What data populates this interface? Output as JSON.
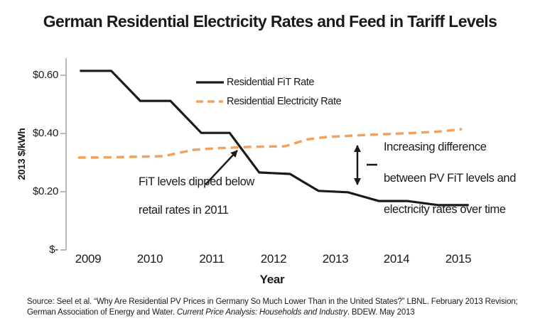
{
  "title": "German Residential Electricity Rates and Feed in Tariff Levels",
  "chart_data": {
    "type": "line",
    "title": "German Residential Electricity Rates and Feed in Tariff Levels",
    "xlabel": "Year",
    "ylabel": "2013 $/kWh",
    "grid": false,
    "legend_position": "inside-upper-center",
    "x_axis": {
      "label": "Year",
      "ticks": [
        2009,
        2010,
        2011,
        2012,
        2013,
        2014,
        2015
      ],
      "range": [
        2008.75,
        2015.35
      ]
    },
    "y_axis": {
      "label": "2013 $/kWh",
      "ticks": [
        {
          "value": 0.6,
          "label": "$0.60"
        },
        {
          "value": 0.4,
          "label": "$0.40"
        },
        {
          "value": 0.2,
          "label": "$0.20"
        },
        {
          "value": 0.0,
          "label": "$-"
        }
      ],
      "range": [
        0,
        0.655
      ]
    },
    "series": [
      {
        "name": "Residential FiT Rate",
        "line_style": "solid",
        "color": "#1a1a1a",
        "points": [
          [
            2008.86,
            0.615
          ],
          [
            2009.37,
            0.615
          ],
          [
            2009.84,
            0.512
          ],
          [
            2010.33,
            0.512
          ],
          [
            2010.83,
            0.402
          ],
          [
            2011.29,
            0.402
          ],
          [
            2011.77,
            0.266
          ],
          [
            2012.27,
            0.261
          ],
          [
            2012.73,
            0.203
          ],
          [
            2013.21,
            0.198
          ],
          [
            2013.71,
            0.168
          ],
          [
            2014.17,
            0.168
          ],
          [
            2014.68,
            0.154
          ],
          [
            2015.17,
            0.154
          ]
        ]
      },
      {
        "name": "Residential Electricity Rate",
        "line_style": "dashed",
        "color": "#F4A15C",
        "points": [
          [
            2008.83,
            0.317
          ],
          [
            2009.3,
            0.318
          ],
          [
            2010.22,
            0.322
          ],
          [
            2010.48,
            0.334
          ],
          [
            2010.71,
            0.344
          ],
          [
            2011.06,
            0.349
          ],
          [
            2011.6,
            0.354
          ],
          [
            2012.18,
            0.356
          ],
          [
            2012.56,
            0.38
          ],
          [
            2012.87,
            0.388
          ],
          [
            2013.52,
            0.395
          ],
          [
            2014.28,
            0.402
          ],
          [
            2014.71,
            0.407
          ],
          [
            2015.06,
            0.415
          ]
        ]
      }
    ],
    "annotations": [
      {
        "id": "dip",
        "lines": [
          "FiT levels dipped below",
          "retail rates in 2011"
        ],
        "marker": "arrow pointing to crossing of the two lines in late 2011"
      },
      {
        "id": "gap",
        "lines": [
          "Increasing difference",
          "between PV FiT levels and",
          "electricity rates over time"
        ],
        "marker": "double-headed vertical arrow between the two lines at ~2013.4"
      }
    ]
  },
  "source": {
    "line1": "Source: Seel et al. “Why Are Residential PV Prices in Germany So Much Lower Than in the United States?” LBNL. February 2013 Revision;",
    "line2_plain": "German Association of Energy and Water.  ",
    "line2_italic": "Current Price Analysis: Households and Industry",
    "line2_end": ". BDEW. May 2013"
  }
}
